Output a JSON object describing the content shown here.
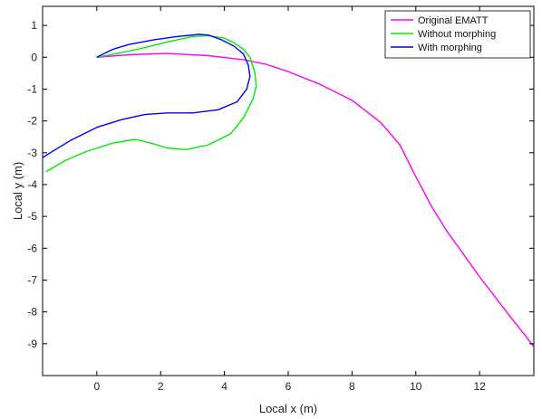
{
  "chart_data": {
    "type": "line",
    "title": "",
    "xlabel": "Local x (m)",
    "ylabel": "Local y (m)",
    "xlim": [
      -1.7,
      13.7
    ],
    "ylim": [
      -10.0,
      1.6
    ],
    "xticks": [
      0,
      2,
      4,
      6,
      8,
      10,
      12
    ],
    "yticks": [
      1,
      0,
      -1,
      -2,
      -3,
      -4,
      -5,
      -6,
      -7,
      -8,
      -9
    ],
    "grid": false,
    "legend_position": "top-right",
    "series": [
      {
        "name": "Original EMATT",
        "color": "#ff00ff",
        "points": [
          [
            0.0,
            0.0
          ],
          [
            1.0,
            0.08
          ],
          [
            2.2,
            0.12
          ],
          [
            3.5,
            0.05
          ],
          [
            4.6,
            -0.08
          ],
          [
            5.3,
            -0.22
          ],
          [
            6.0,
            -0.45
          ],
          [
            7.0,
            -0.85
          ],
          [
            8.0,
            -1.35
          ],
          [
            8.9,
            -2.05
          ],
          [
            9.5,
            -2.75
          ],
          [
            10.0,
            -3.75
          ],
          [
            10.5,
            -4.7
          ],
          [
            11.0,
            -5.5
          ],
          [
            11.5,
            -6.2
          ],
          [
            12.0,
            -6.9
          ],
          [
            12.5,
            -7.55
          ],
          [
            13.0,
            -8.2
          ],
          [
            13.4,
            -8.7
          ],
          [
            13.7,
            -9.1
          ]
        ]
      },
      {
        "name": "Without morphing",
        "color": "#00ee00",
        "points": [
          [
            0.0,
            0.0
          ],
          [
            0.8,
            0.15
          ],
          [
            1.5,
            0.3
          ],
          [
            2.3,
            0.5
          ],
          [
            3.0,
            0.65
          ],
          [
            3.5,
            0.68
          ],
          [
            4.0,
            0.6
          ],
          [
            4.3,
            0.45
          ],
          [
            4.6,
            0.25
          ],
          [
            4.8,
            0.0
          ],
          [
            4.95,
            -0.45
          ],
          [
            5.0,
            -0.9
          ],
          [
            4.9,
            -1.3
          ],
          [
            4.6,
            -1.9
          ],
          [
            4.2,
            -2.4
          ],
          [
            3.5,
            -2.75
          ],
          [
            2.8,
            -2.9
          ],
          [
            2.2,
            -2.85
          ],
          [
            1.7,
            -2.7
          ],
          [
            1.2,
            -2.58
          ],
          [
            0.5,
            -2.7
          ],
          [
            -0.3,
            -2.95
          ],
          [
            -1.0,
            -3.25
          ],
          [
            -1.6,
            -3.6
          ]
        ]
      },
      {
        "name": "With morphing",
        "color": "#0000ff",
        "points": [
          [
            0.0,
            0.0
          ],
          [
            0.5,
            0.25
          ],
          [
            1.0,
            0.4
          ],
          [
            1.8,
            0.55
          ],
          [
            2.5,
            0.65
          ],
          [
            3.2,
            0.72
          ],
          [
            3.5,
            0.7
          ],
          [
            3.9,
            0.55
          ],
          [
            4.3,
            0.35
          ],
          [
            4.6,
            0.1
          ],
          [
            4.75,
            -0.25
          ],
          [
            4.8,
            -0.6
          ],
          [
            4.7,
            -1.0
          ],
          [
            4.4,
            -1.4
          ],
          [
            3.8,
            -1.65
          ],
          [
            3.0,
            -1.75
          ],
          [
            2.2,
            -1.75
          ],
          [
            1.5,
            -1.8
          ],
          [
            0.8,
            -1.95
          ],
          [
            0.0,
            -2.2
          ],
          [
            -0.8,
            -2.6
          ],
          [
            -1.3,
            -2.9
          ],
          [
            -1.7,
            -3.15
          ]
        ]
      }
    ]
  }
}
